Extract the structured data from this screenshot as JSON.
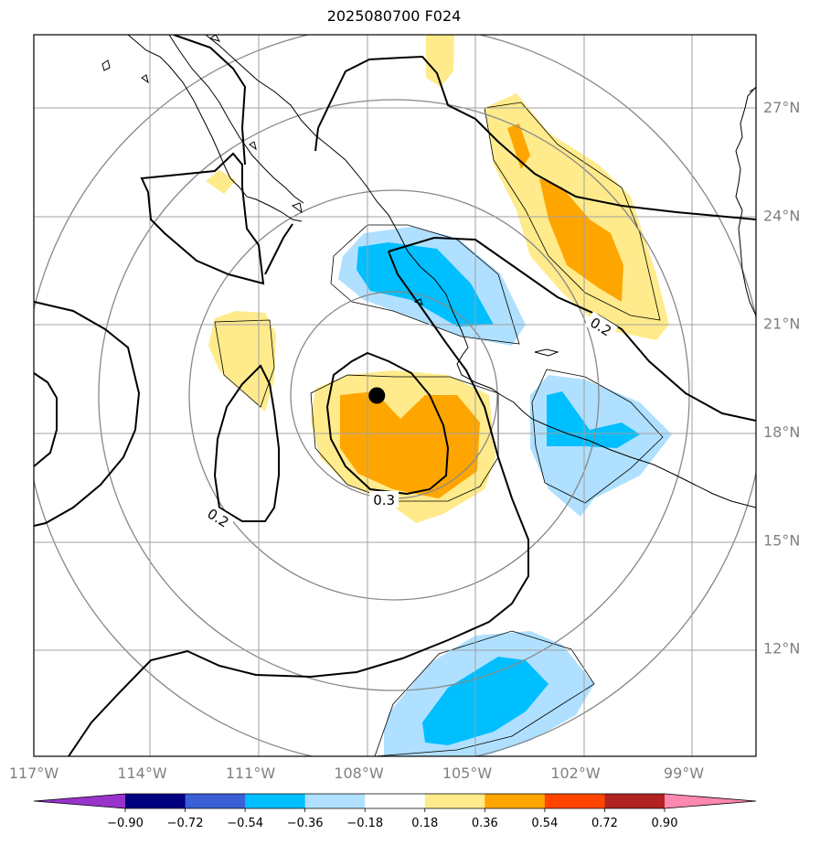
{
  "title": "2025080700 F024",
  "colors": {
    "coast": "#000000",
    "grid": "#a0a0a0",
    "rings": "#888888",
    "contour": "#000000",
    "marker": "#000000"
  },
  "chart_data": {
    "type": "map_contour",
    "projection": "lat-lon",
    "lon_range": [
      -117.0,
      -97.0
    ],
    "lat_range": [
      9.0,
      29.0
    ],
    "x_ticks": [
      {
        "lon": -117,
        "label": "117°W"
      },
      {
        "lon": -114,
        "label": "114°W"
      },
      {
        "lon": -111,
        "label": "111°W"
      },
      {
        "lon": -108,
        "label": "108°W"
      },
      {
        "lon": -105,
        "label": "105°W"
      },
      {
        "lon": -102,
        "label": "102°W"
      },
      {
        "lon": -99,
        "label": "99°W"
      }
    ],
    "y_ticks": [
      {
        "lat": 27,
        "label": "27°N"
      },
      {
        "lat": 24,
        "label": "24°N"
      },
      {
        "lat": 21,
        "label": "21°N"
      },
      {
        "lat": 18,
        "label": "18°N"
      },
      {
        "lat": 15,
        "label": "15°N"
      },
      {
        "lat": 12,
        "label": "12°N"
      }
    ],
    "colorbar": {
      "levels": [
        -0.9,
        -0.72,
        -0.54,
        -0.36,
        -0.18,
        0.18,
        0.36,
        0.54,
        0.72,
        0.9
      ],
      "labels": [
        "−0.90",
        "−0.72",
        "−0.54",
        "−0.36",
        "−0.18",
        "0.18",
        "0.36",
        "0.54",
        "0.72",
        "0.90"
      ],
      "colors": [
        "#9933cc",
        "#000080",
        "#3b5fd6",
        "#00bfff",
        "#b0e0ff",
        "#ffffff",
        "#ffeb8c",
        "#ffa500",
        "#ff4500",
        "#b22222",
        "#ff88b0"
      ],
      "extend": "both"
    },
    "center_marker": {
      "lon": -107.5,
      "lat": 19.0
    },
    "range_rings_center": {
      "lon": -107.5,
      "lat": 19.0
    },
    "contour_labels": [
      {
        "text": "0.3",
        "lon": -107.3,
        "lat": 16.1,
        "rotation": 0
      },
      {
        "text": "0.2",
        "lon": -111.9,
        "lat": 15.6,
        "rotation": 32
      },
      {
        "text": "0.2",
        "lon": -101.3,
        "lat": 20.9,
        "rotation": 32
      }
    ]
  }
}
